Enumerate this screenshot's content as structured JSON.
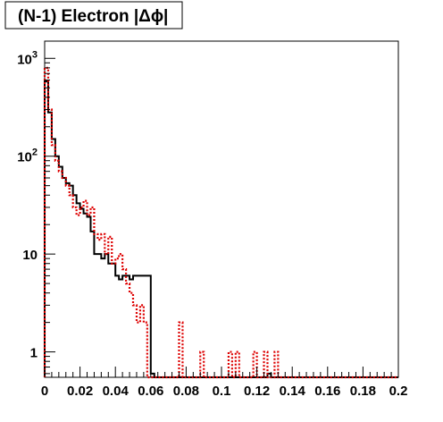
{
  "chart_data": {
    "type": "histogram",
    "title": "(N-1) Electron |Δϕ|",
    "xlabel": "",
    "ylabel": "",
    "x_range": [
      0,
      0.2
    ],
    "y_range": [
      0.55,
      1500
    ],
    "y_scale": "log",
    "grid": false,
    "legend": "none",
    "x_ticks": [
      {
        "value": 0,
        "label": "0"
      },
      {
        "value": 0.02,
        "label": "0.02"
      },
      {
        "value": 0.04,
        "label": "0.04"
      },
      {
        "value": 0.06,
        "label": "0.06"
      },
      {
        "value": 0.08,
        "label": "0.08"
      },
      {
        "value": 0.1,
        "label": "0.1"
      },
      {
        "value": 0.12,
        "label": "0.12"
      },
      {
        "value": 0.14,
        "label": "0.14"
      },
      {
        "value": 0.16,
        "label": "0.16"
      },
      {
        "value": 0.18,
        "label": "0.18"
      },
      {
        "value": 0.2,
        "label": "0.2"
      }
    ],
    "y_ticks": [
      {
        "value": 1,
        "label": "1",
        "exp": ""
      },
      {
        "value": 10,
        "label": "10",
        "exp": ""
      },
      {
        "value": 100,
        "label": "10",
        "exp": "2"
      },
      {
        "value": 1000,
        "label": "10",
        "exp": "3"
      }
    ],
    "bin_width": 0.002,
    "series": [
      {
        "style": "solid",
        "color": "#000000",
        "values": [
          580,
          280,
          150,
          100,
          78,
          60,
          53,
          50,
          40,
          33,
          29,
          26,
          24,
          17,
          10,
          10,
          9,
          10,
          8,
          8,
          6,
          5.5,
          6,
          6,
          5.5,
          6,
          6,
          6,
          6,
          6,
          0.6,
          0.55,
          0,
          0,
          0,
          0,
          0,
          0,
          0,
          0,
          0,
          0,
          0,
          0,
          0,
          0,
          0,
          0,
          0,
          0,
          0,
          0,
          0,
          0,
          0,
          0,
          0,
          0,
          0,
          0,
          0,
          0,
          0,
          0.6,
          0,
          0,
          0,
          0,
          0,
          0,
          0,
          0,
          0,
          0,
          0,
          0,
          0,
          0,
          0,
          0,
          0,
          0,
          0,
          0,
          0,
          0,
          0,
          0,
          0,
          0,
          0,
          0,
          0,
          0,
          0,
          0,
          0,
          0,
          0,
          0
        ]
      },
      {
        "style": "dotted",
        "color": "#dd0000",
        "values": [
          800,
          300,
          130,
          90,
          70,
          60,
          50,
          40,
          30,
          25,
          30,
          35,
          25,
          30,
          16,
          14,
          16,
          10,
          15,
          8,
          9,
          10,
          7,
          5,
          4,
          3,
          2,
          3,
          2,
          0.55,
          0.55,
          0.55,
          0.55,
          0.55,
          0.55,
          0.55,
          0.55,
          0,
          2,
          0.55,
          0,
          0,
          0.55,
          0,
          1,
          0.55,
          0,
          0,
          0,
          0,
          0,
          0,
          1,
          0.55,
          1,
          0.55,
          0.55,
          0.55,
          0,
          1,
          0.55,
          0,
          1,
          0,
          0.55,
          1,
          0.55,
          0,
          0,
          0,
          0,
          0.55,
          0,
          0,
          0,
          0,
          0,
          0.55,
          0.55,
          0,
          0,
          0,
          0,
          0,
          0,
          0,
          0,
          0,
          0,
          0,
          0,
          0,
          0,
          0,
          0,
          0,
          0,
          0,
          0,
          0
        ]
      }
    ]
  }
}
